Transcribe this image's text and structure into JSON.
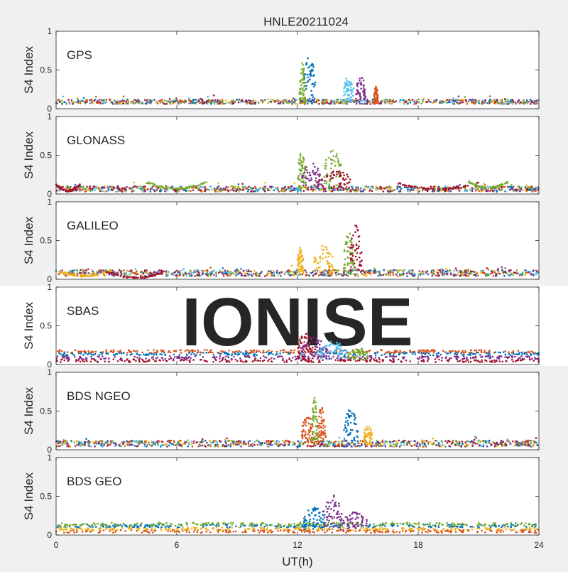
{
  "figure": {
    "title": "HNLE20211024",
    "watermark": "IONISE",
    "xlabel": "UT(h)",
    "background": "#f0f0f0",
    "axes_background": "#ffffff",
    "watermark_color": "#e6e6e6"
  },
  "series_colors": [
    "#0072bd",
    "#d95319",
    "#edb120",
    "#7e2f8e",
    "#77ac30",
    "#4dbeee",
    "#a2142f"
  ],
  "chart_data": [
    {
      "type": "scatter",
      "title": "HNLE20211024",
      "panel_label": "GPS",
      "ylabel": "S4 Index",
      "xlabel": "",
      "xlim": [
        0,
        24
      ],
      "ylim": [
        0,
        1
      ],
      "xticks": [
        0,
        6,
        12,
        18,
        24
      ],
      "yticks": [
        0,
        0.5,
        1
      ],
      "ytick_labels": [
        "0",
        "0.5",
        "1"
      ],
      "baseline": [
        0.06,
        0.12
      ],
      "features": [
        {
          "x": [
            12.3,
            12.9
          ],
          "peak": 0.68,
          "color": "#0072bd"
        },
        {
          "x": [
            12.1,
            12.4
          ],
          "peak": 0.6,
          "color": "#77ac30"
        },
        {
          "x": [
            14.3,
            14.8
          ],
          "peak": 0.45,
          "color": "#4dbeee"
        },
        {
          "x": [
            14.9,
            15.4
          ],
          "peak": 0.42,
          "color": "#7e2f8e"
        },
        {
          "x": [
            15.8,
            16.0
          ],
          "peak": 0.3,
          "color": "#d95319"
        }
      ]
    },
    {
      "type": "scatter",
      "panel_label": "GLONASS",
      "ylabel": "S4 Index",
      "xlabel": "",
      "xlim": [
        0,
        24
      ],
      "ylim": [
        0,
        1
      ],
      "xticks": [
        0,
        6,
        12,
        18,
        24
      ],
      "yticks": [
        0,
        0.5,
        1
      ],
      "ytick_labels": [
        "0",
        "0.5",
        "1"
      ],
      "baseline": [
        0.03,
        0.1
      ],
      "arcs": [
        {
          "x": [
            0,
            1.2
          ],
          "level": 0.12,
          "color": "#a2142f"
        },
        {
          "x": [
            4.5,
            7.5
          ],
          "level": 0.15,
          "color": "#77ac30"
        },
        {
          "x": [
            17,
            21
          ],
          "level": 0.14,
          "color": "#a2142f"
        },
        {
          "x": [
            20.5,
            22.5
          ],
          "level": 0.16,
          "color": "#77ac30"
        }
      ],
      "features": [
        {
          "x": [
            12.2,
            13.2
          ],
          "peak": 0.4,
          "color": "#7e2f8e"
        },
        {
          "x": [
            13.3,
            14.2
          ],
          "peak": 0.58,
          "color": "#77ac30"
        },
        {
          "x": [
            12.0,
            12.4
          ],
          "peak": 0.55,
          "color": "#77ac30"
        },
        {
          "x": [
            13.0,
            14.8
          ],
          "peak": 0.3,
          "color": "#a2142f"
        }
      ]
    },
    {
      "type": "scatter",
      "panel_label": "GALILEO",
      "ylabel": "S4 Index",
      "xlabel": "",
      "xlim": [
        0,
        24
      ],
      "ylim": [
        0,
        1
      ],
      "xticks": [
        0,
        6,
        12,
        18,
        24
      ],
      "yticks": [
        0,
        0.5,
        1
      ],
      "ytick_labels": [
        "0",
        "0.5",
        "1"
      ],
      "baseline": [
        0.04,
        0.12
      ],
      "arcs": [
        {
          "x": [
            0,
            2.8
          ],
          "level": 0.12,
          "color": "#edb120"
        },
        {
          "x": [
            2.5,
            5.5
          ],
          "level": 0.1,
          "color": "#a2142f"
        }
      ],
      "features": [
        {
          "x": [
            12.8,
            13.8
          ],
          "peak": 0.45,
          "color": "#edb120"
        },
        {
          "x": [
            12.0,
            12.3
          ],
          "peak": 0.42,
          "color": "#edb120"
        },
        {
          "x": [
            14.3,
            14.8
          ],
          "peak": 0.62,
          "color": "#77ac30"
        },
        {
          "x": [
            14.6,
            15.2
          ],
          "peak": 0.7,
          "color": "#a2142f"
        }
      ]
    },
    {
      "type": "scatter",
      "panel_label": "SBAS",
      "ylabel": "S4 Index",
      "xlabel": "",
      "xlim": [
        0,
        24
      ],
      "ylim": [
        0,
        1
      ],
      "xticks": [
        0,
        6,
        12,
        18,
        24
      ],
      "yticks": [
        0,
        0.5,
        1
      ],
      "ytick_labels": [
        "0",
        "0.5",
        "1"
      ],
      "bands": [
        {
          "level": 0.05,
          "color": "#a2142f"
        },
        {
          "level": 0.09,
          "color": "#7e2f8e"
        },
        {
          "level": 0.14,
          "color": "#0072bd"
        },
        {
          "level": 0.17,
          "color": "#d95319"
        }
      ],
      "features": [
        {
          "x": [
            12.0,
            12.8
          ],
          "peak": 0.42,
          "color": "#a2142f"
        },
        {
          "x": [
            12.2,
            13.5
          ],
          "peak": 0.35,
          "color": "#7e2f8e"
        },
        {
          "x": [
            13.0,
            14.5
          ],
          "peak": 0.3,
          "color": "#4dbeee"
        },
        {
          "x": [
            14.5,
            15.5
          ],
          "peak": 0.22,
          "color": "#77ac30"
        }
      ]
    },
    {
      "type": "scatter",
      "panel_label": "BDS NGEO",
      "ylabel": "S4 Index",
      "xlabel": "",
      "xlim": [
        0,
        24
      ],
      "ylim": [
        0,
        1
      ],
      "xticks": [
        0,
        6,
        12,
        18,
        24
      ],
      "yticks": [
        0,
        0.5,
        1
      ],
      "ytick_labels": [
        "0",
        "0.5",
        "1"
      ],
      "baseline": [
        0.04,
        0.12
      ],
      "features": [
        {
          "x": [
            12.2,
            12.8
          ],
          "peak": 0.45,
          "color": "#d95319"
        },
        {
          "x": [
            12.7,
            13.0
          ],
          "peak": 0.68,
          "color": "#77ac30"
        },
        {
          "x": [
            13.0,
            13.4
          ],
          "peak": 0.55,
          "color": "#d95319"
        },
        {
          "x": [
            14.3,
            15.0
          ],
          "peak": 0.55,
          "color": "#0072bd"
        },
        {
          "x": [
            15.3,
            15.7
          ],
          "peak": 0.35,
          "color": "#edb120"
        }
      ]
    },
    {
      "type": "scatter",
      "panel_label": "BDS GEO",
      "ylabel": "S4 Index",
      "xlabel": "UT(h)",
      "xlim": [
        0,
        24
      ],
      "ylim": [
        0,
        1
      ],
      "xticks": [
        0,
        6,
        12,
        18,
        24
      ],
      "yticks": [
        0,
        0.5,
        1
      ],
      "ytick_labels": [
        "0",
        "0.5",
        "1"
      ],
      "xtick_labels": [
        "0",
        "6",
        "12",
        "18",
        "24"
      ],
      "bands": [
        {
          "level": 0.05,
          "color": "#d95319"
        },
        {
          "level": 0.08,
          "color": "#edb120"
        },
        {
          "level": 0.12,
          "color": "#0072bd"
        },
        {
          "level": 0.14,
          "color": "#77ac30"
        }
      ],
      "features": [
        {
          "x": [
            12.3,
            13.5
          ],
          "peak": 0.38,
          "color": "#0072bd"
        },
        {
          "x": [
            13.3,
            14.2
          ],
          "peak": 0.52,
          "color": "#7e2f8e"
        },
        {
          "x": [
            14.2,
            15.5
          ],
          "peak": 0.3,
          "color": "#7e2f8e"
        }
      ]
    }
  ]
}
